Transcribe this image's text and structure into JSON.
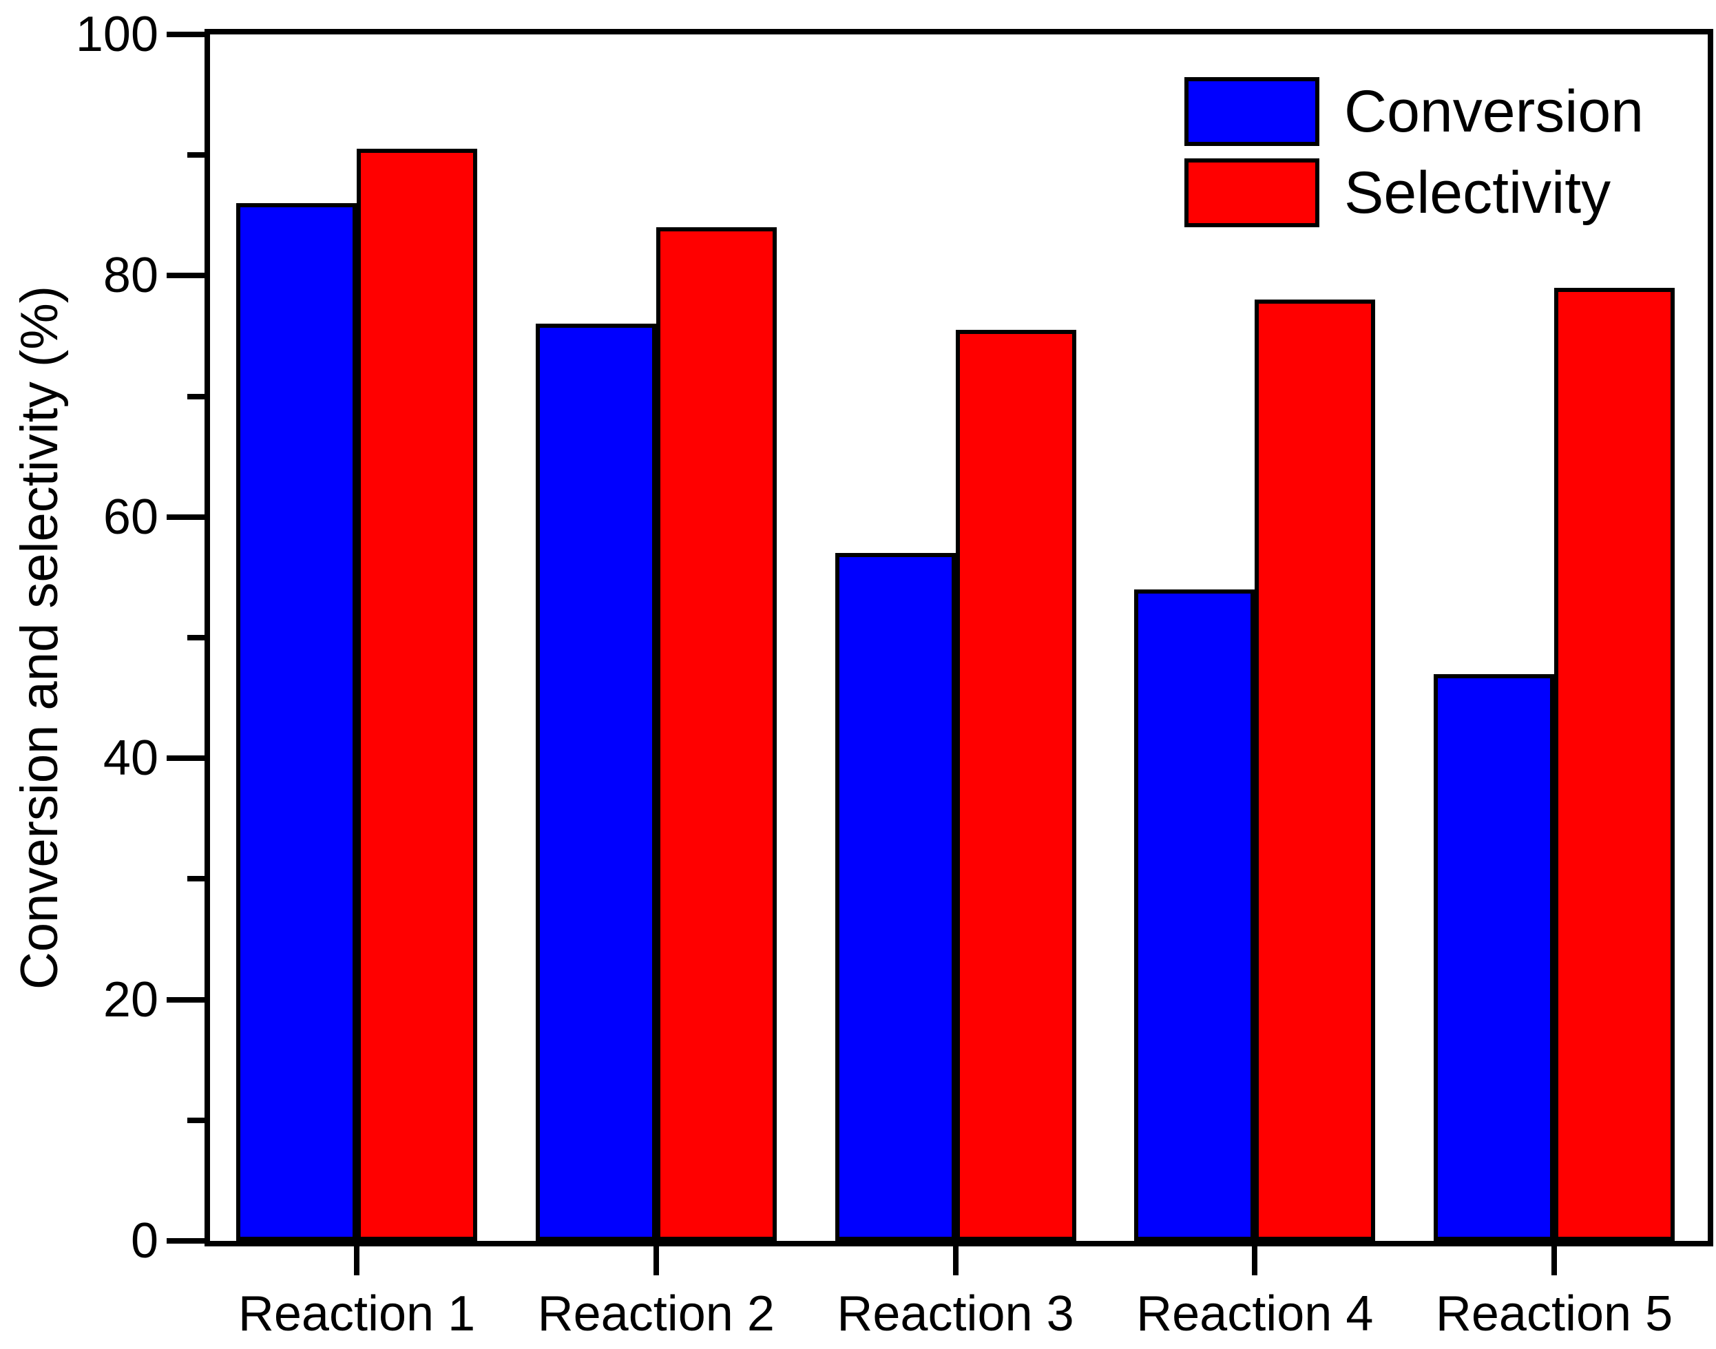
{
  "figure": {
    "title": ""
  },
  "chart_data": {
    "type": "bar",
    "title": "",
    "categories": [
      "Reaction 1",
      "Reaction 2",
      "Reaction 3",
      "Reaction 4",
      "Reaction 5"
    ],
    "series": [
      {
        "name": "Conversion",
        "color": "#0000FF",
        "values": [
          86,
          76,
          57,
          54,
          47
        ]
      },
      {
        "name": "Selectivity",
        "color": "#FF0000",
        "values": [
          90.5,
          84,
          75.5,
          78,
          79
        ]
      }
    ],
    "xlabel": "",
    "ylabel": "Conversion and selectivity (%)",
    "ylim": [
      0,
      100
    ],
    "yticks": [
      0,
      20,
      40,
      60,
      80,
      100
    ],
    "yticks_minor": [
      10,
      30,
      50,
      70,
      90
    ],
    "ytick_labels": [
      "0",
      "20",
      "40",
      "60",
      "80",
      "100"
    ],
    "grid": false,
    "legend_position": "top-right",
    "bar_edge_color": "#000000",
    "axis_color": "#000000",
    "background_color": "#FFFFFF"
  }
}
